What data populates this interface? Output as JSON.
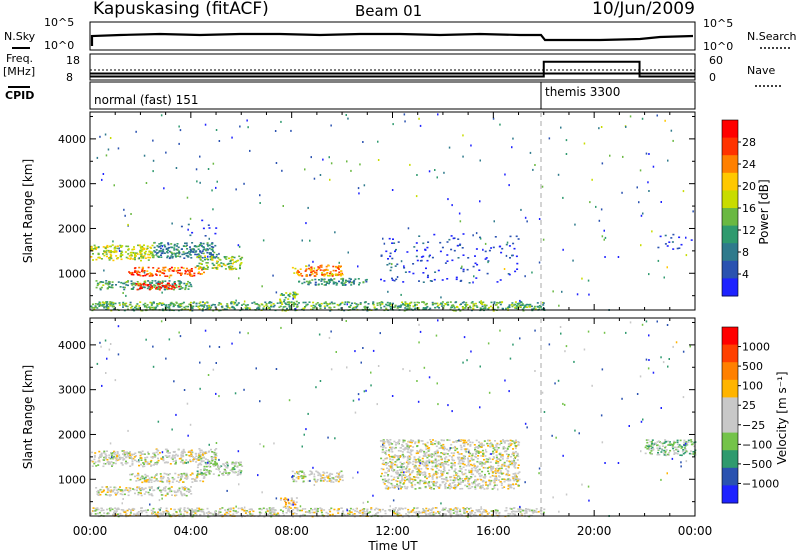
{
  "header": {
    "station": "Kapuskasing (fitACF)",
    "beam": "Beam 01",
    "date": "10/Jun/2009"
  },
  "status_panels": {
    "nsky_label": "N.Sky",
    "nsky_ticks": [
      "10^5",
      "10^0"
    ],
    "nsearch_label": "N.Search",
    "nsearch_ticks": [
      "10^5",
      "10^0"
    ],
    "freq_label": "Freq.",
    "freq_unit": "[MHz]",
    "freq_ticks": [
      "18",
      "8"
    ],
    "nave_label": "Nave",
    "nave_ticks": [
      "60",
      "0"
    ],
    "cpid_label": "CPID",
    "modes": [
      {
        "name": "normal (fast) 151",
        "start_hour": 0,
        "end_hour": 18
      },
      {
        "name": "themis 3300",
        "start_hour": 18,
        "end_hour": 24
      }
    ],
    "nave_levels": [
      {
        "start_hour": 0,
        "end_hour": 18,
        "value": 8
      },
      {
        "start_hour": 18,
        "end_hour": 21.8,
        "value": 42
      },
      {
        "start_hour": 21.8,
        "end_hour": 24,
        "value": 8
      }
    ],
    "freq_levels": [
      {
        "start_hour": 0,
        "end_hour": 24,
        "value": 10.5
      }
    ]
  },
  "chart_data": [
    {
      "type": "heatmap",
      "name": "power",
      "xlabel": "Time UT",
      "ylabel": "Slant Range [km]",
      "xlim": [
        0,
        24
      ],
      "ylim": [
        180,
        4600
      ],
      "x_ticks": [
        "00:00",
        "04:00",
        "08:00",
        "12:00",
        "16:00",
        "20:00",
        "00:00"
      ],
      "y_ticks": [
        1000,
        2000,
        3000,
        4000
      ],
      "colorbar": {
        "label": "Power [dB]",
        "ticks": [
          "28",
          "24",
          "20",
          "16",
          "12",
          "8",
          "4"
        ],
        "colors": [
          "#ff0000",
          "#ff3300",
          "#ff8000",
          "#ffc800",
          "#c8dc00",
          "#6ab842",
          "#2f9a6e",
          "#2f7a8c",
          "#2a52b0",
          "#1e22ff"
        ]
      },
      "regions": [
        {
          "t0": 0.0,
          "t1": 2.5,
          "r0": 1300,
          "r1": 1650,
          "level": 0.55
        },
        {
          "t0": 2.5,
          "t1": 5.0,
          "r0": 1350,
          "r1": 1700,
          "level": 0.25
        },
        {
          "t0": 1.5,
          "t1": 4.5,
          "r0": 950,
          "r1": 1150,
          "level": 0.85
        },
        {
          "t0": 0.2,
          "t1": 4.0,
          "r0": 650,
          "r1": 850,
          "level": 0.35
        },
        {
          "t0": 1.8,
          "t1": 3.5,
          "r0": 650,
          "r1": 800,
          "level": 0.95
        },
        {
          "t0": 4.2,
          "t1": 6.0,
          "r0": 1100,
          "r1": 1400,
          "level": 0.5
        },
        {
          "t0": 3.5,
          "t1": 5.0,
          "r0": 1850,
          "r1": 2200,
          "level": 0.1
        },
        {
          "t0": 8.0,
          "t1": 10.0,
          "r0": 950,
          "r1": 1200,
          "level": 0.75
        },
        {
          "t0": 8.2,
          "t1": 11.0,
          "r0": 750,
          "r1": 900,
          "level": 0.3
        },
        {
          "t0": 7.5,
          "t1": 8.2,
          "r0": 350,
          "r1": 600,
          "level": 0.45
        },
        {
          "t0": 0.0,
          "t1": 18.0,
          "r0": 180,
          "r1": 380,
          "level": 0.4
        },
        {
          "t0": 11.5,
          "t1": 17.0,
          "r0": 800,
          "r1": 1900,
          "level": 0.05
        },
        {
          "t0": 22.0,
          "t1": 24.0,
          "r0": 1550,
          "r1": 1900,
          "level": 0.05
        }
      ]
    },
    {
      "type": "heatmap",
      "name": "velocity",
      "xlabel": "Time UT",
      "ylabel": "Slant Range [km]",
      "xlim": [
        0,
        24
      ],
      "ylim": [
        180,
        4600
      ],
      "x_ticks": [
        "00:00",
        "04:00",
        "08:00",
        "12:00",
        "16:00",
        "20:00",
        "00:00"
      ],
      "y_ticks": [
        1000,
        2000,
        3000,
        4000
      ],
      "colorbar": {
        "label": "Velocity [m s⁻¹]",
        "ticks": [
          "1000",
          "500",
          "100",
          "25",
          "−25",
          "−100",
          "−500",
          "−1000"
        ],
        "colors": [
          "#ff0000",
          "#ff4000",
          "#ff8000",
          "#ffb400",
          "#c8c8c8",
          "#c8c8c8",
          "#74c34a",
          "#2f9a6e",
          "#2a52b0",
          "#1e22ff"
        ]
      },
      "regions": [
        {
          "t0": 0.0,
          "t1": 2.5,
          "r0": 1300,
          "r1": 1650,
          "level": 0.5
        },
        {
          "t0": 2.5,
          "t1": 5.0,
          "r0": 1350,
          "r1": 1700,
          "level": 0.5
        },
        {
          "t0": 1.5,
          "t1": 4.5,
          "r0": 950,
          "r1": 1150,
          "level": 0.5
        },
        {
          "t0": 0.2,
          "t1": 4.0,
          "r0": 650,
          "r1": 850,
          "level": 0.5
        },
        {
          "t0": 4.2,
          "t1": 6.0,
          "r0": 1100,
          "r1": 1400,
          "level": 0.4
        },
        {
          "t0": 8.0,
          "t1": 10.0,
          "r0": 950,
          "r1": 1200,
          "level": 0.5
        },
        {
          "t0": 7.5,
          "t1": 8.2,
          "r0": 350,
          "r1": 600,
          "level": 0.6
        },
        {
          "t0": 0.0,
          "t1": 18.0,
          "r0": 180,
          "r1": 380,
          "level": 0.5
        },
        {
          "t0": 11.5,
          "t1": 17.0,
          "r0": 800,
          "r1": 1900,
          "level": 0.5
        },
        {
          "t0": 22.0,
          "t1": 24.0,
          "r0": 1550,
          "r1": 1900,
          "level": 0.35
        }
      ]
    }
  ]
}
